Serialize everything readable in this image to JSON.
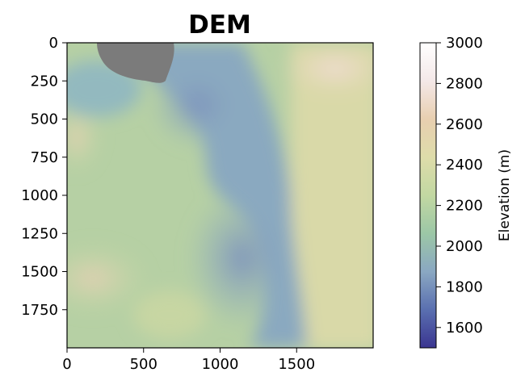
{
  "chart_data": {
    "type": "heatmap",
    "title": "DEM",
    "xlabel": "",
    "ylabel": "",
    "xlim": [
      0,
      2000
    ],
    "ylim": [
      2000,
      0
    ],
    "x_ticks": [
      "0",
      "500",
      "1000",
      "1500"
    ],
    "y_ticks": [
      "0",
      "250",
      "500",
      "750",
      "1000",
      "1250",
      "1500",
      "1750"
    ],
    "colorbar": {
      "label": "Elevation (m)",
      "range": [
        1500,
        3000
      ],
      "ticks": [
        "1600",
        "1800",
        "2000",
        "2200",
        "2400",
        "2600",
        "2800",
        "3000"
      ],
      "colors": [
        "#3a3590",
        "#5a6fb0",
        "#8aa8c2",
        "#9cc7a6",
        "#c2d8a2",
        "#dedcaa",
        "#e8cfb0",
        "#f4e8e8",
        "#ffffff"
      ]
    },
    "nodata_color": "#7b7b7b",
    "grid": false
  }
}
